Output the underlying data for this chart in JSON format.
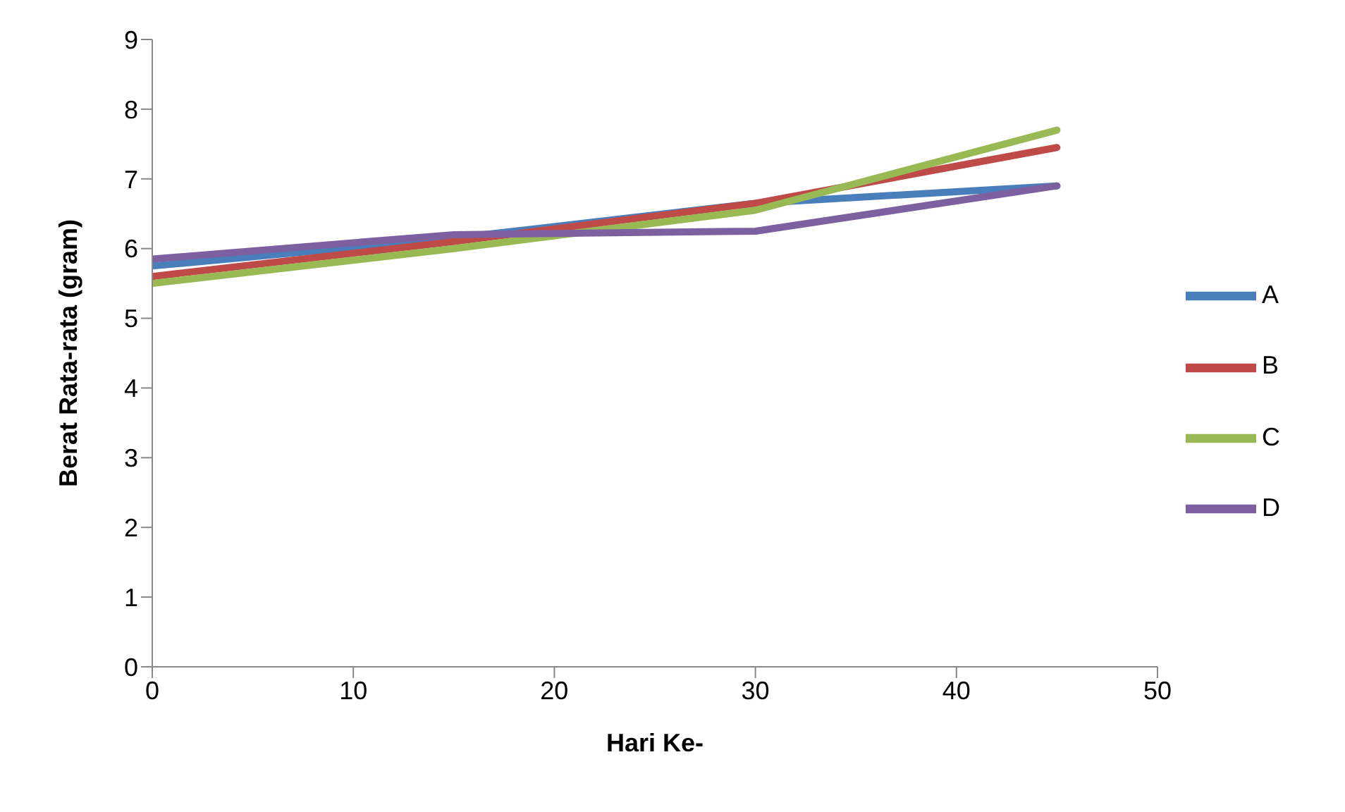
{
  "chart_data": {
    "type": "line",
    "xlabel": "Hari Ke-",
    "ylabel": "Berat Rata-rata (gram)",
    "x": [
      0,
      15,
      30,
      45
    ],
    "series": [
      {
        "name": "A",
        "color": "#4a7ebb",
        "values": [
          5.75,
          6.15,
          6.65,
          6.9
        ]
      },
      {
        "name": "B",
        "color": "#be4b48",
        "values": [
          5.6,
          6.1,
          6.65,
          7.45
        ]
      },
      {
        "name": "C",
        "color": "#98b954",
        "values": [
          5.5,
          6.0,
          6.55,
          7.7
        ]
      },
      {
        "name": "D",
        "color": "#7d60a0",
        "values": [
          5.85,
          6.2,
          6.25,
          6.9
        ]
      }
    ],
    "xlim": [
      0,
      50
    ],
    "xticks": [
      0,
      10,
      20,
      30,
      40,
      50
    ],
    "ylim": [
      0,
      9
    ],
    "yticks": [
      0,
      1,
      2,
      3,
      4,
      5,
      6,
      7,
      8,
      9
    ],
    "grid": false,
    "legend": "right",
    "marker": "none"
  }
}
